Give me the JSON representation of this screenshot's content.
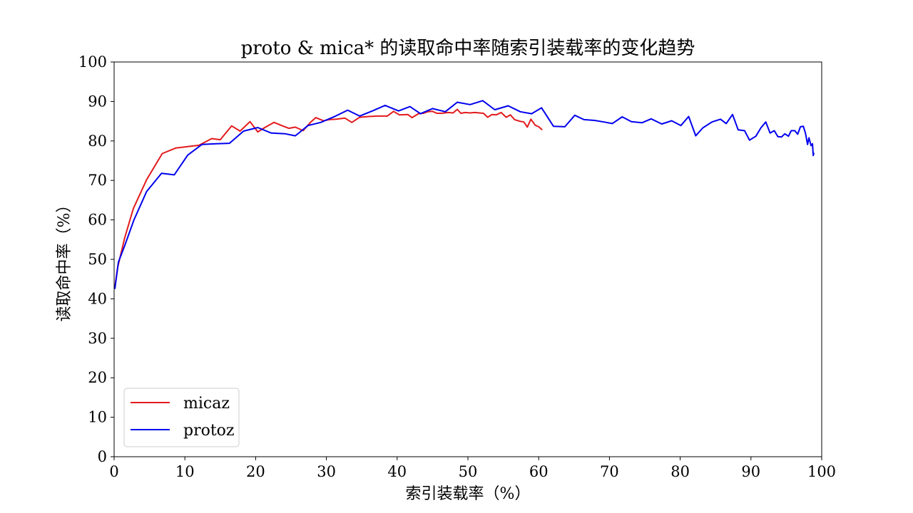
{
  "chart_data": {
    "type": "line",
    "title": "proto & mica* 的读取命中率随索引装载率的变化趋势",
    "xlabel": "索引装载率（%）",
    "ylabel": "读取命中率（%）",
    "xlim": [
      0,
      100
    ],
    "ylim": [
      0,
      100
    ],
    "xticks": [
      0,
      10,
      20,
      30,
      40,
      50,
      60,
      70,
      80,
      90,
      100
    ],
    "yticks": [
      0,
      10,
      20,
      30,
      40,
      50,
      60,
      70,
      80,
      90,
      100
    ],
    "xtick_labels": [
      "0",
      "10",
      "20",
      "30",
      "40",
      "50",
      "60",
      "70",
      "80",
      "90",
      "100"
    ],
    "ytick_labels": [
      "0",
      "10",
      "20",
      "30",
      "40",
      "50",
      "60",
      "70",
      "80",
      "90",
      "100"
    ],
    "legend_position": "lower-left",
    "series": [
      {
        "name": "micaz",
        "color": "#e31a1c",
        "x": [
          0.1,
          0.5,
          1.5,
          2.7,
          4.6,
          6.8,
          8.7,
          10.5,
          12.0,
          13.8,
          15.0,
          16.6,
          17.8,
          19.2,
          20.3,
          21.4,
          22.6,
          23.8,
          24.7,
          25.6,
          26.7,
          27.8,
          28.5,
          29.6,
          30.4,
          31.4,
          32.6,
          33.6,
          34.7,
          36.0,
          37.3,
          38.6,
          39.5,
          40.3,
          41.5,
          42.1,
          43.0,
          43.7,
          44.3,
          45.0,
          45.6,
          46.3,
          47.2,
          47.9,
          48.5,
          49.0,
          49.6,
          50.3,
          51.0,
          51.6,
          52.2,
          52.8,
          53.4,
          54.0,
          54.7,
          55.4,
          56.0,
          56.6,
          57.3,
          57.9,
          58.4,
          58.9,
          59.5,
          60.0,
          60.5
        ],
        "y": [
          43.0,
          48.0,
          55.5,
          62.8,
          70.2,
          76.8,
          78.2,
          78.6,
          78.9,
          80.6,
          80.3,
          83.8,
          82.5,
          84.9,
          82.3,
          83.5,
          84.7,
          83.8,
          83.2,
          83.5,
          82.6,
          84.8,
          85.9,
          85.1,
          85.4,
          85.5,
          85.8,
          84.7,
          86.0,
          86.2,
          86.3,
          86.3,
          87.5,
          86.6,
          86.7,
          85.9,
          86.9,
          87.0,
          87.4,
          87.5,
          87.0,
          87.0,
          87.2,
          87.1,
          88.0,
          87.0,
          87.2,
          87.1,
          87.2,
          87.1,
          87.0,
          86.0,
          86.7,
          86.6,
          87.2,
          86.0,
          86.6,
          85.4,
          85.0,
          84.8,
          83.5,
          85.5,
          84.0,
          83.6,
          82.8
        ]
      },
      {
        "name": "protoz",
        "color": "#0000ee",
        "x": [
          0.1,
          0.6,
          1.5,
          2.8,
          4.6,
          6.7,
          8.5,
          10.4,
          12.4,
          14.4,
          16.3,
          18.3,
          20.3,
          22.2,
          24.2,
          25.6,
          27.4,
          29.2,
          31.3,
          33.0,
          34.7,
          36.5,
          38.3,
          40.2,
          41.8,
          43.3,
          45.0,
          46.8,
          48.5,
          50.3,
          52.1,
          53.8,
          55.7,
          57.4,
          59.0,
          60.4,
          62.1,
          63.7,
          65.1,
          66.4,
          67.9,
          69.2,
          70.4,
          71.8,
          73.1,
          74.6,
          75.9,
          77.4,
          78.8,
          80.1,
          81.2,
          82.2,
          83.2,
          84.5,
          85.7,
          86.5,
          87.4,
          88.2,
          89.1,
          89.8,
          90.7,
          91.4,
          92.1,
          92.7,
          93.3,
          93.8,
          94.3,
          94.8,
          95.3,
          95.7,
          96.2,
          96.6,
          97.0,
          97.4,
          97.7,
          98.0,
          98.2,
          98.5,
          98.7,
          98.8,
          98.9
        ],
        "y": [
          42.5,
          49.3,
          53.5,
          60.0,
          67.2,
          71.8,
          71.4,
          76.4,
          79.1,
          79.3,
          79.4,
          82.5,
          83.4,
          82.0,
          81.8,
          81.3,
          83.9,
          84.7,
          86.3,
          87.8,
          86.3,
          87.6,
          89.0,
          87.6,
          88.7,
          86.9,
          88.2,
          87.4,
          89.8,
          89.2,
          90.2,
          87.9,
          88.9,
          87.4,
          86.9,
          88.4,
          83.7,
          83.6,
          86.5,
          85.4,
          85.2,
          84.8,
          84.4,
          86.1,
          84.9,
          84.6,
          85.6,
          84.3,
          85.1,
          83.9,
          86.2,
          81.3,
          83.3,
          84.8,
          85.5,
          84.4,
          86.7,
          82.8,
          82.6,
          80.2,
          81.2,
          83.3,
          84.8,
          82.0,
          82.6,
          81.1,
          81.0,
          81.8,
          81.2,
          82.6,
          82.6,
          81.7,
          83.6,
          83.7,
          82.0,
          79.1,
          80.8,
          78.8,
          79.3,
          76.3,
          77.0
        ]
      }
    ]
  }
}
